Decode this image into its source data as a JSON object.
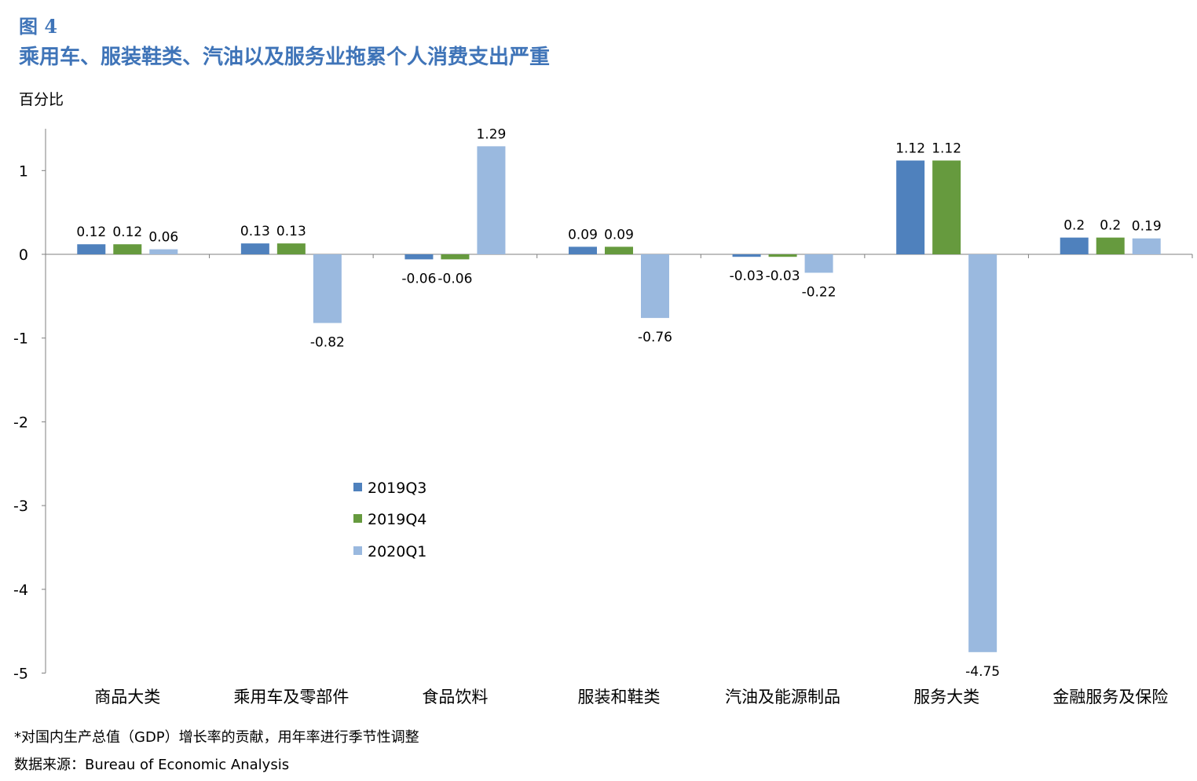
{
  "figure_label": "图 4",
  "title": "乘用车、服装鞋类、汽油以及服务业拖累个人消费支出严重",
  "unit_label": "百分比",
  "footnote": "*对国内生产总值（GDP）增长率的贡献，用年率进行季节性调整",
  "source": "数据来源：Bureau of Economic Analysis",
  "chart_data": {
    "type": "bar",
    "title": "乘用车、服装鞋类、汽油以及服务业拖累个人消费支出严重",
    "ylabel": "百分比",
    "xlabel": "",
    "ylim": [
      -5,
      1.5
    ],
    "yticks": [
      1,
      0,
      -1,
      -2,
      -3,
      -4,
      -5
    ],
    "grid": false,
    "legend_position": "middle-left",
    "categories": [
      "商品大类",
      "乘用车及零部件",
      "食品饮料",
      "服装和鞋类",
      "汽油及能源制品",
      "服务大类",
      "金融服务及保险"
    ],
    "series": [
      {
        "name": "2019Q3",
        "color": "#4f81bd",
        "values": [
          0.12,
          0.13,
          -0.06,
          0.09,
          -0.03,
          1.12,
          0.2
        ]
      },
      {
        "name": "2019Q4",
        "color": "#669a3e",
        "values": [
          0.12,
          0.13,
          -0.06,
          0.09,
          -0.03,
          1.12,
          0.2
        ]
      },
      {
        "name": "2020Q1",
        "color": "#9ab9df",
        "values": [
          0.06,
          -0.82,
          1.29,
          -0.76,
          -0.22,
          -4.75,
          0.19
        ]
      }
    ],
    "value_labels": [
      [
        "0.12",
        "0.13",
        "-0.06",
        "0.09",
        "-0.03",
        "1.12",
        "0.2"
      ],
      [
        "0.12",
        "0.13",
        "-0.06",
        "0.09",
        "-0.03",
        "1.12",
        "0.2"
      ],
      [
        "0.06",
        "-0.82",
        "1.29",
        "-0.76",
        "-0.22",
        "-4.75",
        "0.19"
      ]
    ],
    "ytick_labels": [
      "1",
      "0",
      "-1",
      "-2",
      "-3",
      "-4",
      "-5"
    ]
  }
}
